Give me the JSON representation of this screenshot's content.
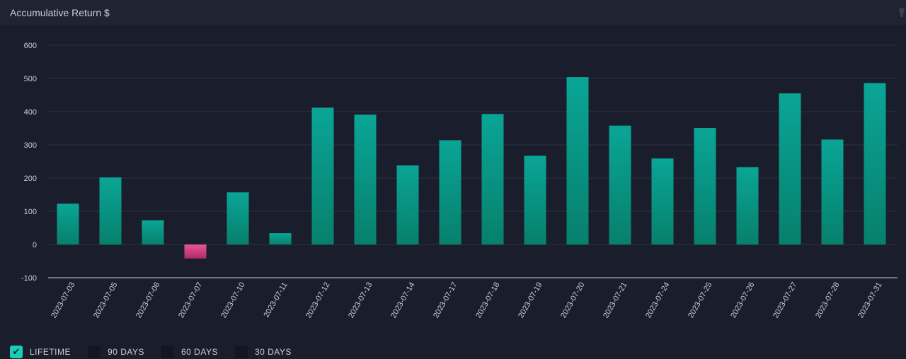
{
  "header": {
    "title": "Accumulative Return $"
  },
  "icons": {
    "corner": "pin-icon"
  },
  "colors": {
    "positive_top": "#0aa596",
    "positive_bottom": "#07806d",
    "negative_top": "#e8559a",
    "negative_bottom": "#b02b68",
    "grid": "#2c3142",
    "zero_axis": "#8a8f9c"
  },
  "filters": [
    {
      "label": "LIFETIME",
      "checked": true
    },
    {
      "label": "90 DAYS",
      "checked": false
    },
    {
      "label": "60 DAYS",
      "checked": false
    },
    {
      "label": "30 DAYS",
      "checked": false
    }
  ],
  "chart_data": {
    "type": "bar",
    "title": "Accumulative Return $",
    "xlabel": "",
    "ylabel": "",
    "ylim": [
      -100,
      600
    ],
    "yticks": [
      600,
      500,
      400,
      300,
      200,
      100,
      0,
      -100
    ],
    "grid": true,
    "categories": [
      "2023-07-03",
      "2023-07-05",
      "2023-07-06",
      "2023-07-07",
      "2023-07-10",
      "2023-07-11",
      "2023-07-12",
      "2023-07-13",
      "2023-07-14",
      "2023-07-17",
      "2023-07-18",
      "2023-07-19",
      "2023-07-20",
      "2023-07-21",
      "2023-07-24",
      "2023-07-25",
      "2023-07-26",
      "2023-07-27",
      "2023-07-28",
      "2023-07-31"
    ],
    "values": [
      123,
      202,
      73,
      -42,
      157,
      34,
      412,
      391,
      238,
      314,
      393,
      267,
      504,
      358,
      259,
      351,
      233,
      455,
      316,
      486
    ]
  }
}
